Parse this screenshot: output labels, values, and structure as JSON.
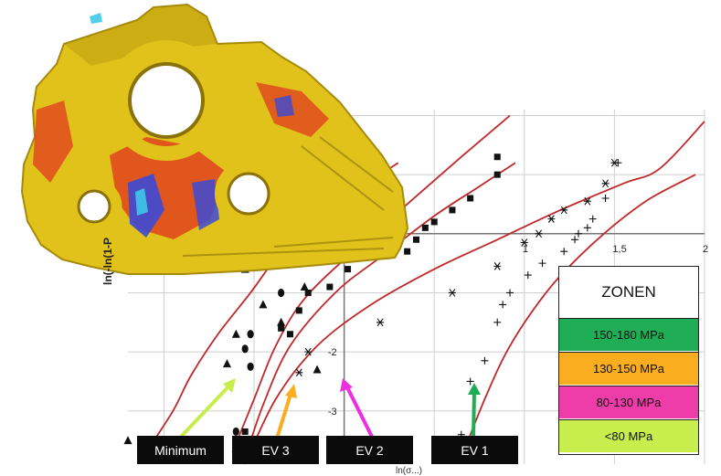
{
  "chart_data": {
    "type": "scatter",
    "title": "",
    "xlabel": "ln(σ...)",
    "ylabel": "ln(-ln(1-P",
    "xlim": [
      -1.2,
      2
    ],
    "ylim": [
      -3.9,
      2.1
    ],
    "x_ticks": [
      {
        "v": 1,
        "label": "1"
      },
      {
        "v": 1.5,
        "label": "1,5"
      },
      {
        "v": 2,
        "label": "2"
      }
    ],
    "y_ticks": [
      {
        "v": -2,
        "label": "-2"
      },
      {
        "v": -3,
        "label": "-3"
      }
    ],
    "colors": {
      "curve": "#c0282a",
      "grid": "#cfcfcf",
      "axis": "#777777",
      "marker": "#111111"
    },
    "series": [
      {
        "marker": "triangle",
        "points": [
          [
            -0.18,
            1.4
          ],
          [
            -0.2,
            0.9
          ],
          [
            -0.25,
            0.3
          ],
          [
            -0.6,
            -1.7
          ],
          [
            -0.65,
            -2.2
          ],
          [
            -0.15,
            -2.3
          ],
          [
            -0.45,
            -1.2
          ],
          [
            -0.55,
            -0.6
          ],
          [
            -0.22,
            -0.9
          ],
          [
            -0.35,
            -1.5
          ],
          [
            -1.2,
            -3.5
          ]
        ],
        "curve": [
          [
            -1.1,
            -3.7
          ],
          [
            -0.95,
            -3.0
          ],
          [
            -0.85,
            -2.4
          ],
          [
            -0.7,
            -1.7
          ],
          [
            -0.52,
            -1.0
          ],
          [
            -0.35,
            -0.3
          ],
          [
            -0.15,
            0.3
          ],
          [
            0.05,
            0.7
          ],
          [
            0.3,
            1.2
          ]
        ]
      },
      {
        "marker": "circle",
        "points": [
          [
            -0.12,
            1.4
          ],
          [
            -0.15,
            0.8
          ],
          [
            -0.3,
            -0.2
          ],
          [
            -0.35,
            -1.0
          ],
          [
            -0.52,
            -1.7
          ],
          [
            -0.55,
            -1.95
          ],
          [
            -0.52,
            -2.25
          ],
          [
            -0.6,
            -3.35
          ]
        ],
        "curve": [
          [
            -0.62,
            -3.7
          ],
          [
            -0.5,
            -2.8
          ],
          [
            -0.38,
            -1.9
          ],
          [
            -0.22,
            -1.1
          ],
          [
            0.05,
            -0.3
          ],
          [
            0.35,
            0.5
          ],
          [
            0.65,
            1.3
          ],
          [
            0.92,
            2.0
          ]
        ]
      },
      {
        "marker": "square",
        "points": [
          [
            0.85,
            1.3
          ],
          [
            0.85,
            1.0
          ],
          [
            0.7,
            0.6
          ],
          [
            0.6,
            0.4
          ],
          [
            0.5,
            0.2
          ],
          [
            0.45,
            0.1
          ],
          [
            0.4,
            -0.1
          ],
          [
            0.35,
            -0.3
          ],
          [
            0.05,
            -0.3
          ],
          [
            0.02,
            -0.6
          ],
          [
            -0.08,
            -0.9
          ],
          [
            -0.2,
            -1.0
          ],
          [
            -0.25,
            -1.3
          ],
          [
            -0.35,
            -1.6
          ],
          [
            -0.3,
            -1.7
          ],
          [
            -0.55,
            -3.35
          ]
        ],
        "curve": [
          [
            -0.55,
            -3.8
          ],
          [
            -0.45,
            -2.9
          ],
          [
            -0.3,
            -1.9
          ],
          [
            -0.05,
            -1.0
          ],
          [
            0.2,
            -0.4
          ],
          [
            0.5,
            0.3
          ],
          [
            0.75,
            0.8
          ],
          [
            0.95,
            1.2
          ]
        ]
      },
      {
        "marker": "asterisk",
        "points": [
          [
            1.5,
            1.2
          ],
          [
            1.45,
            0.85
          ],
          [
            1.35,
            0.55
          ],
          [
            1.22,
            0.4
          ],
          [
            1.15,
            0.25
          ],
          [
            1.08,
            0.0
          ],
          [
            1.0,
            -0.15
          ],
          [
            0.85,
            -0.55
          ],
          [
            0.6,
            -1.0
          ],
          [
            0.2,
            -1.5
          ],
          [
            -0.2,
            -2.0
          ],
          [
            -0.25,
            -2.35
          ]
        ],
        "curve": [
          [
            -0.55,
            -3.9
          ],
          [
            -0.38,
            -2.8
          ],
          [
            -0.15,
            -1.9
          ],
          [
            0.15,
            -1.2
          ],
          [
            0.5,
            -0.6
          ],
          [
            0.85,
            -0.1
          ],
          [
            1.2,
            0.4
          ],
          [
            1.55,
            0.85
          ],
          [
            1.75,
            1.1
          ],
          [
            2.0,
            1.9
          ]
        ]
      },
      {
        "marker": "plus",
        "points": [
          [
            1.52,
            1.2
          ],
          [
            1.45,
            0.6
          ],
          [
            1.38,
            0.25
          ],
          [
            1.35,
            0.1
          ],
          [
            1.3,
            0.0
          ],
          [
            1.28,
            -0.1
          ],
          [
            1.22,
            -0.3
          ],
          [
            1.1,
            -0.5
          ],
          [
            1.02,
            -0.7
          ],
          [
            0.92,
            -1.0
          ],
          [
            0.88,
            -1.2
          ],
          [
            0.85,
            -1.5
          ],
          [
            0.78,
            -2.15
          ],
          [
            0.7,
            -2.5
          ],
          [
            0.65,
            -3.4
          ]
        ],
        "curve": [
          [
            0.65,
            -3.8
          ],
          [
            0.78,
            -2.8
          ],
          [
            0.92,
            -1.9
          ],
          [
            1.12,
            -1.0
          ],
          [
            1.3,
            -0.4
          ],
          [
            1.5,
            0.15
          ],
          [
            1.7,
            0.6
          ],
          [
            1.95,
            1.0
          ]
        ]
      }
    ]
  },
  "legend": {
    "title": "ZONEN",
    "items": [
      {
        "label": "150-180 MPa",
        "color": "#1fad55"
      },
      {
        "label": "130-150 MPa",
        "color": "#f9ad1f"
      },
      {
        "label": "80-130 MPa",
        "color": "#ee3ca8"
      },
      {
        "label": "<80 MPa",
        "color": "#c7ee4d"
      }
    ]
  },
  "labels": {
    "minimum": "Minimum",
    "ev3": "EV 3",
    "ev2": "EV 2",
    "ev1": "EV 1"
  },
  "arrows": {
    "minimum": "#c7ee4d",
    "ev3": "#f9ad1f",
    "ev2": "#ee2fe0",
    "ev1": "#1fad55"
  },
  "casting": {
    "body": "#e0c21a",
    "shade": "#a58a0c",
    "hot": "#e0321f",
    "cold": "#3c4ad6",
    "cyan": "#3fc9e8"
  }
}
